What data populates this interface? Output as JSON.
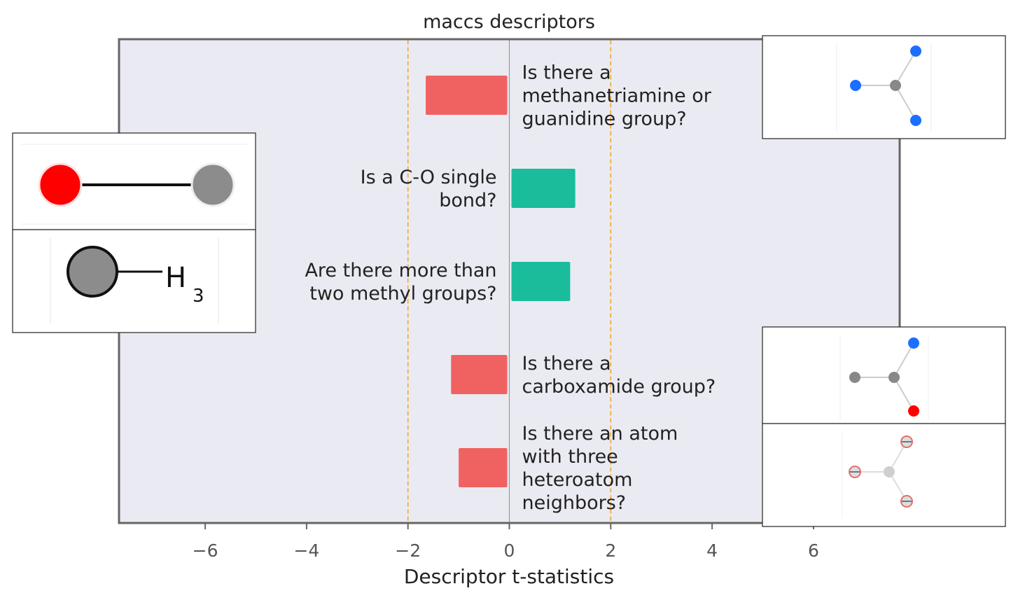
{
  "chart_data": {
    "type": "bar",
    "orientation": "horizontal",
    "title": "maccs descriptors",
    "xlabel": "Descriptor t-statistics",
    "ylabel": "",
    "xlim": [
      -7.7,
      7.7
    ],
    "xticks": [
      -6,
      -4,
      -2,
      0,
      2,
      4,
      6
    ],
    "xtick_labels": [
      "−6",
      "−4",
      "−2",
      "0",
      "2",
      "4",
      "6"
    ],
    "threshold_lines": [
      -2,
      2
    ],
    "grid": false,
    "legend": "none",
    "bars": [
      {
        "label_lines": [
          "Is there a",
          "methanetriamine or",
          "guanidine group?"
        ],
        "value": -1.65
      },
      {
        "label_lines": [
          "Is a C-O single",
          "bond?"
        ],
        "value": 1.3
      },
      {
        "label_lines": [
          "Are there more than",
          "two methyl groups?"
        ],
        "value": 1.2
      },
      {
        "label_lines": [
          "Is there a",
          "carboxamide group?"
        ],
        "value": -1.15
      },
      {
        "label_lines": [
          "Is there an atom",
          "with three",
          "heteroatom",
          "neighbors?"
        ],
        "value": -1.0
      }
    ],
    "colors": {
      "positive": "#1abc9c",
      "negative": "#f06262",
      "threshold": "#f5a623",
      "plot_background": "#eaeaf2",
      "axis": "#666666",
      "zero_line": "#999999",
      "text": "#222222",
      "tick_text": "#555555"
    }
  },
  "insets": [
    {
      "name": "methanetriamine-structure-inset",
      "depicts": "central carbon bonded to three nitrogen atoms"
    },
    {
      "name": "c-o-bond-structure-inset",
      "depicts": "oxygen atom single bonded to carbon atom"
    },
    {
      "name": "methyl-group-structure-inset",
      "depicts": "carbon atom bonded to H3",
      "text": [
        "H",
        "3"
      ]
    },
    {
      "name": "carboxamide-structure-inset",
      "depicts": "carbon chain with nitrogen and oxygen"
    },
    {
      "name": "heteroatom-neighbors-structure-inset",
      "depicts": "central atom with three heteroatom neighbors"
    }
  ]
}
